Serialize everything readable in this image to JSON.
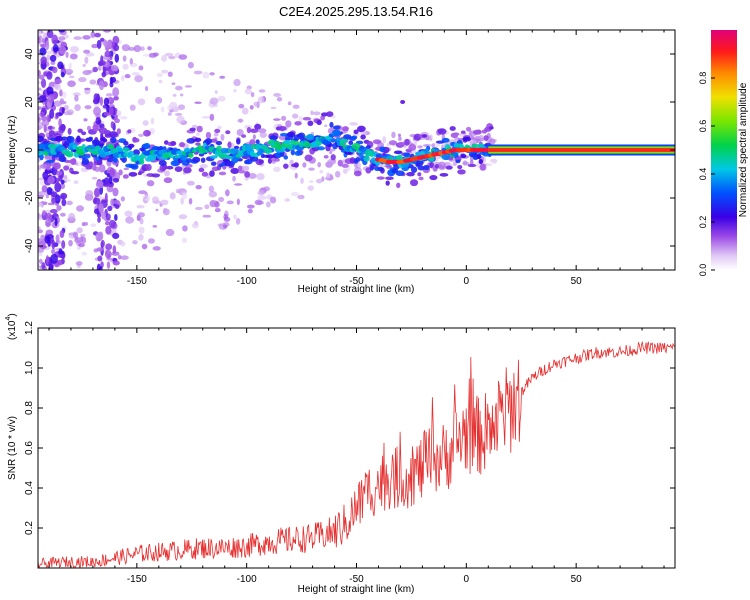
{
  "title": "C2E4.2025.295.13.54.R16",
  "chart_data": [
    {
      "type": "heatmap",
      "ylabel": "Frequency (Hz)",
      "xlabel": "Height of straight line (km)",
      "xlim": [
        -195,
        95
      ],
      "ylim": [
        -50,
        50
      ],
      "xticks": [
        -150,
        -100,
        -50,
        0,
        50
      ],
      "xtick_labels": [
        "-150",
        "-100",
        "-50",
        "0",
        "50"
      ],
      "yticks": [
        -40,
        -20,
        0,
        20,
        40
      ],
      "ytick_labels": [
        "-40",
        "-20",
        "0",
        "20",
        "40"
      ],
      "ridge": {
        "x": [
          -195,
          -185,
          -170,
          -160,
          -150,
          -140,
          -130,
          -120,
          -110,
          -100,
          -90,
          -80,
          -70,
          -60,
          -55,
          -50,
          -45,
          -40,
          -35,
          -30,
          -25,
          -20,
          -15,
          -10,
          -5,
          0,
          5,
          10,
          20,
          40,
          60,
          80,
          95
        ],
        "freq": [
          0,
          0,
          0,
          0,
          -3,
          -3,
          -2,
          0,
          -2,
          -1,
          1,
          2,
          4,
          6,
          3,
          0,
          -2,
          -4,
          -5,
          -5,
          -4,
          -3,
          -2,
          -1,
          0,
          0,
          0,
          0,
          0,
          0,
          0,
          0,
          0
        ]
      },
      "colorbar": {
        "label": "Normalized spectral amplitude",
        "range": [
          0,
          1
        ],
        "ticks": [
          0.0,
          0.2,
          0.4,
          0.6,
          0.8
        ],
        "tick_labels": [
          "0.0",
          "0.2",
          "0.4",
          "0.6",
          "0.8"
        ]
      }
    },
    {
      "type": "line",
      "ylabel": "SNR (10 * v/v)",
      "yscale_label": "(x10",
      "yscale_exp": "4",
      "yscale_close": ")",
      "xlabel": "Height of straight line (km)",
      "xlim": [
        -195,
        95
      ],
      "ylim": [
        0,
        1.2
      ],
      "xticks": [
        -150,
        -100,
        -50,
        0,
        50
      ],
      "xtick_labels": [
        "-150",
        "-100",
        "-50",
        "0",
        "50"
      ],
      "yticks": [
        0.2,
        0.4,
        0.6,
        0.8,
        1.0,
        1.2
      ],
      "ytick_labels": [
        "0.2",
        "0.4",
        "0.6",
        "0.8",
        "1.0",
        "1.2"
      ],
      "color": "#e53030",
      "series": [
        {
          "name": "SNR",
          "x": [
            -195,
            -180,
            -170,
            -160,
            -150,
            -140,
            -130,
            -120,
            -110,
            -100,
            -90,
            -80,
            -70,
            -60,
            -55,
            -50,
            -45,
            -40,
            -35,
            -30,
            -25,
            -20,
            -15,
            -10,
            -5,
            0,
            5,
            10,
            15,
            20,
            25,
            30,
            35,
            40,
            50,
            60,
            70,
            80,
            90,
            95
          ],
          "y": [
            0.02,
            0.03,
            0.03,
            0.05,
            0.07,
            0.08,
            0.09,
            0.1,
            0.1,
            0.11,
            0.13,
            0.14,
            0.15,
            0.18,
            0.22,
            0.3,
            0.38,
            0.42,
            0.45,
            0.45,
            0.46,
            0.5,
            0.55,
            0.55,
            0.62,
            0.68,
            0.66,
            0.68,
            0.75,
            0.8,
            0.88,
            0.95,
            0.99,
            1.02,
            1.05,
            1.08,
            1.08,
            1.1,
            1.1,
            1.1
          ]
        }
      ]
    }
  ]
}
